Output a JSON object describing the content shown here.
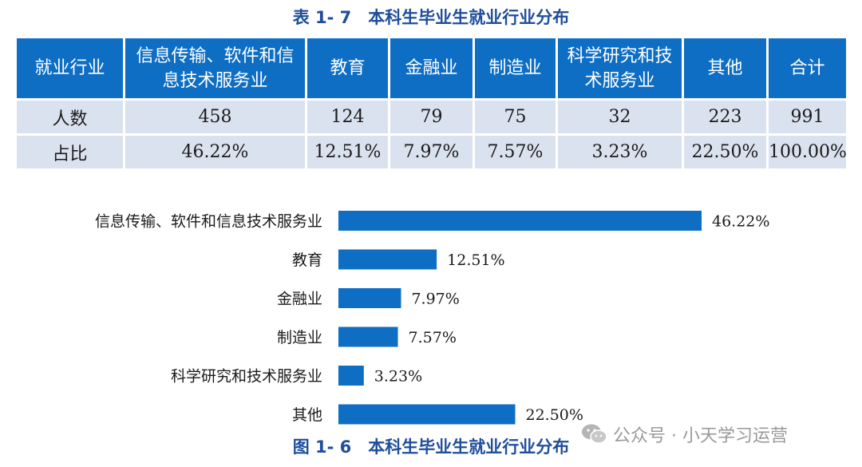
{
  "table": {
    "title": "表 1- 7　本科生毕业生就业行业分布",
    "headers": [
      "就业行业",
      "信息传输、软件和信息技术服务业",
      "教育",
      "金融业",
      "制造业",
      "科学研究和技术服务业",
      "其他",
      "合计"
    ],
    "rows": [
      [
        "人数",
        "458",
        "124",
        "79",
        "75",
        "32",
        "223",
        "991"
      ],
      [
        "占比",
        "46.22%",
        "12.51%",
        "7.97%",
        "7.57%",
        "3.23%",
        "22.50%",
        "100.00%"
      ]
    ]
  },
  "chart_data": {
    "type": "bar",
    "orientation": "horizontal",
    "title": "图 1- 6　本科生毕业生就业行业分布",
    "categories": [
      "信息传输、软件和信息技术服务业",
      "教育",
      "金融业",
      "制造业",
      "科学研究和技术服务业",
      "其他"
    ],
    "values": [
      46.22,
      12.51,
      7.97,
      7.57,
      3.23,
      22.5
    ],
    "value_labels": [
      "46.22%",
      "12.51%",
      "7.97%",
      "7.57%",
      "3.23%",
      "22.50%"
    ],
    "xlim": [
      0,
      50
    ],
    "grid": false,
    "bar_color": "#0e6ec4"
  },
  "watermark": {
    "text": "公众号 · 小天学习运营",
    "icon": "wechat-icon"
  }
}
